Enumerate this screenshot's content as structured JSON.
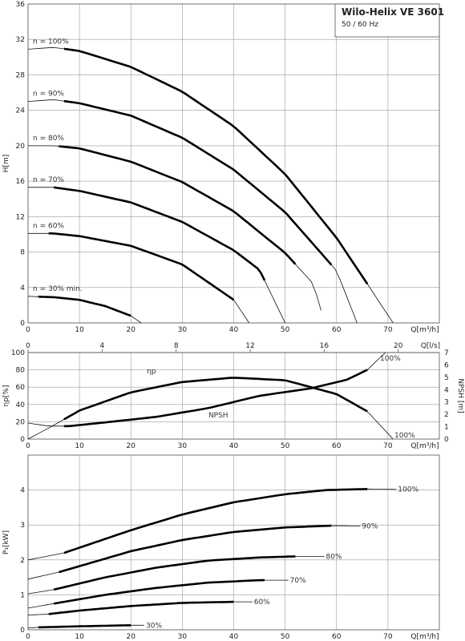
{
  "title": "Wilo-Helix VE 3601",
  "subtitle": "50 / 60 Hz",
  "chart_data": [
    {
      "id": "head",
      "type": "line",
      "xlabel": "Q[m³/h]",
      "ylabel": "H[m]",
      "xlim": [
        0,
        80
      ],
      "ylim": [
        0,
        36
      ],
      "xticks": [
        0,
        10,
        20,
        30,
        40,
        50,
        60,
        70
      ],
      "yticks": [
        0,
        4,
        8,
        12,
        16,
        20,
        24,
        28,
        32,
        36
      ],
      "secondary_x": {
        "label": "Q[l/s]",
        "lim": [
          0,
          22.222
        ],
        "ticks": [
          0,
          4,
          8,
          12,
          16,
          20
        ]
      },
      "grid": true,
      "series": [
        {
          "name": "n = 100%",
          "x": [
            0,
            5,
            10,
            20,
            30,
            40,
            50,
            60,
            66,
            71
          ],
          "y": [
            30.9,
            31.1,
            30.7,
            28.9,
            26.1,
            22.2,
            16.8,
            9.6,
            4.4,
            0
          ],
          "bold_range": [
            7,
            66
          ]
        },
        {
          "name": "n = 90%",
          "x": [
            0,
            5,
            10,
            20,
            30,
            40,
            50,
            60,
            64
          ],
          "y": [
            25,
            25.2,
            24.8,
            23.4,
            20.9,
            17.3,
            12.5,
            5.9,
            0
          ],
          "bold_range": [
            7,
            59
          ]
        },
        {
          "name": "n = 80%",
          "x": [
            0,
            5,
            10,
            20,
            30,
            40,
            50,
            55.5,
            57
          ],
          "y": [
            20,
            20,
            19.7,
            18.2,
            15.9,
            12.6,
            7.9,
            4.4,
            1.4
          ],
          "bold_range": [
            6,
            52
          ]
        },
        {
          "name": "n = 70%",
          "x": [
            0,
            5,
            10,
            20,
            30,
            40,
            45,
            50
          ],
          "y": [
            15.3,
            15.3,
            14.9,
            13.6,
            11.4,
            8.2,
            6.0,
            0
          ],
          "bold_range": [
            5,
            46
          ]
        },
        {
          "name": "n = 60%",
          "x": [
            0,
            5,
            10,
            20,
            30,
            40,
            43
          ],
          "y": [
            10.1,
            10.1,
            9.8,
            8.7,
            6.6,
            2.6,
            0
          ],
          "bold_range": [
            4,
            40
          ]
        },
        {
          "name": "n = 30% min.",
          "x": [
            0,
            5,
            10,
            15,
            20,
            22
          ],
          "y": [
            3,
            2.9,
            2.6,
            1.9,
            0.8,
            0
          ],
          "bold_range": [
            2,
            20
          ]
        }
      ]
    },
    {
      "id": "efficiency",
      "type": "line",
      "xlabel": "Q[m³/h]",
      "ylabel": "ηp[%]",
      "ylabel2": "NPSH [m]",
      "xlim": [
        0,
        80
      ],
      "ylim": [
        0,
        100
      ],
      "ylim2": [
        0,
        7
      ],
      "xticks": [
        0,
        10,
        20,
        30,
        40,
        50,
        60,
        70
      ],
      "yticks": [
        0,
        20,
        40,
        60,
        80,
        100
      ],
      "yticks2": [
        0,
        1,
        2,
        3,
        4,
        5,
        6,
        7
      ],
      "grid": true,
      "annotations": [
        "100%",
        "100%"
      ],
      "series": [
        {
          "name": "ηp",
          "axis": "left",
          "x": [
            0,
            5,
            10,
            20,
            30,
            40,
            50,
            60,
            66,
            71
          ],
          "y": [
            0,
            16,
            33,
            54,
            66,
            71,
            68,
            52,
            32,
            0
          ],
          "bold_range": [
            7,
            66
          ]
        },
        {
          "name": "NPSH",
          "axis": "right",
          "x": [
            0,
            4,
            8,
            15,
            25,
            35,
            45,
            55,
            62,
            66,
            69.5
          ],
          "y": [
            1.3,
            1.05,
            1.05,
            1.35,
            1.8,
            2.5,
            3.5,
            4.1,
            4.8,
            5.6,
            7
          ],
          "bold_range": [
            7,
            66
          ]
        }
      ]
    },
    {
      "id": "power",
      "type": "line",
      "xlabel": "Q[m³/h]",
      "ylabel": "P₁[kW]",
      "xlim": [
        0,
        80
      ],
      "ylim": [
        0,
        5
      ],
      "xticks": [
        0,
        10,
        20,
        30,
        40,
        50,
        60,
        70
      ],
      "yticks": [
        0,
        1,
        2,
        3,
        4
      ],
      "grid": true,
      "series": [
        {
          "name": "100%",
          "x": [
            0,
            7,
            20,
            30,
            40,
            50,
            58,
            66,
            71
          ],
          "y": [
            2.0,
            2.2,
            2.85,
            3.3,
            3.65,
            3.88,
            4.0,
            4.03,
            4.02
          ],
          "bold_range": [
            7,
            66
          ]
        },
        {
          "name": "90%",
          "x": [
            0,
            6,
            20,
            30,
            40,
            50,
            59,
            64
          ],
          "y": [
            1.45,
            1.65,
            2.25,
            2.57,
            2.8,
            2.93,
            2.98,
            2.97
          ],
          "bold_range": [
            6,
            59
          ]
        },
        {
          "name": "80%",
          "x": [
            0,
            5,
            15,
            25,
            35,
            45,
            52,
            57
          ],
          "y": [
            1.03,
            1.15,
            1.5,
            1.78,
            1.98,
            2.07,
            2.1,
            2.1
          ],
          "bold_range": [
            5,
            52
          ]
        },
        {
          "name": "70%",
          "x": [
            0,
            5,
            15,
            25,
            35,
            45,
            50
          ],
          "y": [
            0.62,
            0.75,
            1.0,
            1.2,
            1.35,
            1.42,
            1.42
          ],
          "bold_range": [
            5,
            46
          ]
        },
        {
          "name": "60%",
          "x": [
            0,
            4,
            10,
            20,
            30,
            40,
            43
          ],
          "y": [
            0.42,
            0.45,
            0.55,
            0.68,
            0.77,
            0.8,
            0.8
          ],
          "bold_range": [
            4,
            40
          ]
        },
        {
          "name": "30%",
          "x": [
            0,
            2,
            10,
            20,
            22
          ],
          "y": [
            0.05,
            0.07,
            0.1,
            0.13,
            0.13
          ],
          "bold_range": [
            2,
            20
          ]
        }
      ]
    }
  ]
}
